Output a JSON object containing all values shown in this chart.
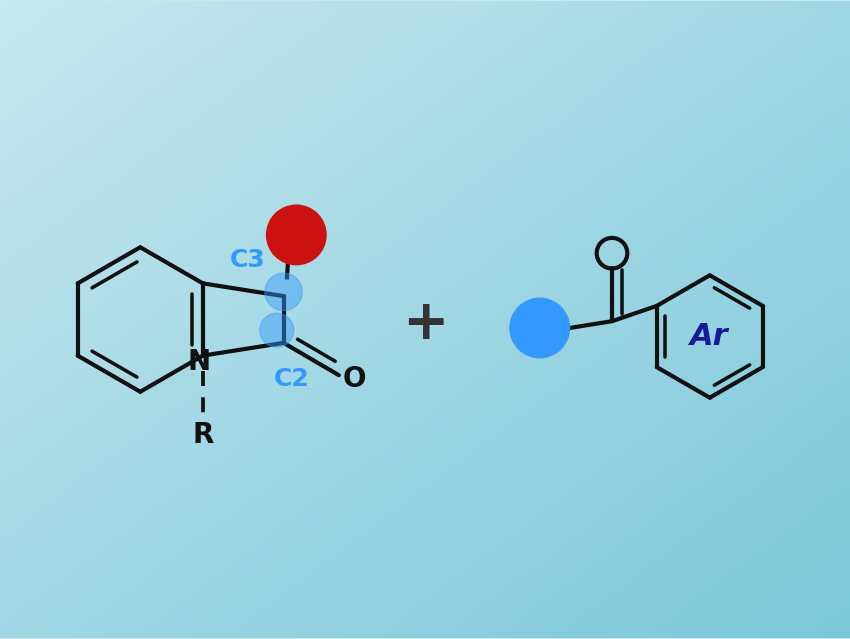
{
  "bg_color_top_left": "#c8e8f0",
  "bg_color_bottom_right": "#7ec8d8",
  "line_color": "#111111",
  "line_width": 3.0,
  "red_dot_color": "#cc1111",
  "blue_dot_color": "#3399ff",
  "blue_label_color": "#3399ff",
  "dark_blue_ar_color": "#1a1a99",
  "plus_color": "#333333",
  "c3_label": "C3",
  "c2_label": "C2",
  "n_label": "N",
  "r_label": "R",
  "o_label": "O",
  "ar_label": "Ar",
  "plus_symbol": "+",
  "font_size_labels": 18,
  "font_size_ar": 22,
  "font_size_plus": 40
}
